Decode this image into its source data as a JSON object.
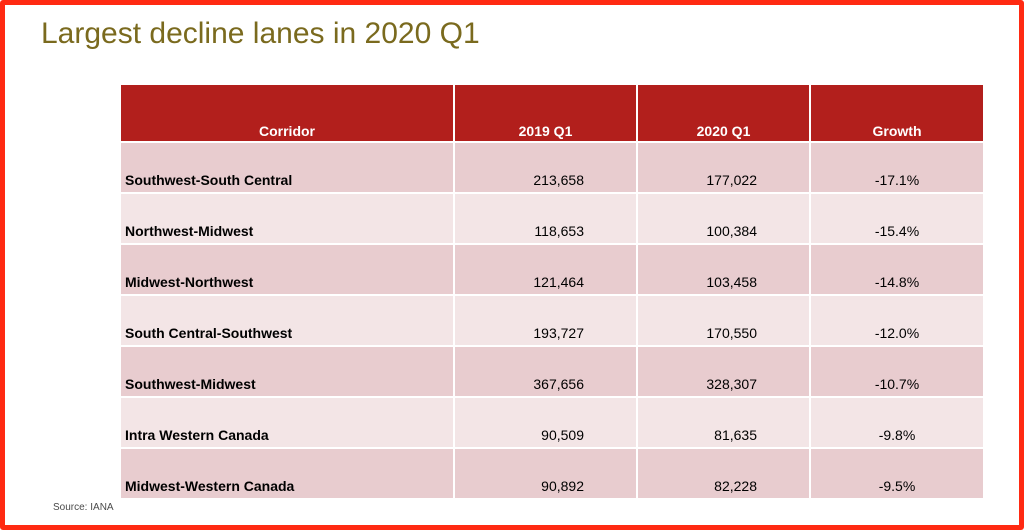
{
  "title": "Largest decline lanes in 2020 Q1",
  "table": {
    "headers": [
      "Corridor",
      "2019 Q1",
      "2020 Q1",
      "Growth"
    ],
    "rows": [
      {
        "corridor": "Southwest-South Central",
        "q1_2019": "213,658",
        "q1_2020": "177,022",
        "growth": "-17.1%"
      },
      {
        "corridor": "Northwest-Midwest",
        "q1_2019": "118,653",
        "q1_2020": "100,384",
        "growth": "-15.4%"
      },
      {
        "corridor": "Midwest-Northwest",
        "q1_2019": "121,464",
        "q1_2020": "103,458",
        "growth": "-14.8%"
      },
      {
        "corridor": "South Central-Southwest",
        "q1_2019": "193,727",
        "q1_2020": "170,550",
        "growth": "-12.0%"
      },
      {
        "corridor": "Southwest-Midwest",
        "q1_2019": "367,656",
        "q1_2020": "328,307",
        "growth": "-10.7%"
      },
      {
        "corridor": "Intra Western Canada",
        "q1_2019": "90,509",
        "q1_2020": "81,635",
        "growth": "-9.8%"
      },
      {
        "corridor": "Midwest-Western Canada",
        "q1_2019": "90,892",
        "q1_2020": "82,228",
        "growth": "-9.5%"
      }
    ]
  },
  "source": "Source: IANA",
  "colors": {
    "frame": "#ff2a12",
    "title": "#7a6a1e",
    "header_bg": "#b21f1c",
    "row_dark": "#e8cccf",
    "row_light": "#f3e5e6"
  }
}
